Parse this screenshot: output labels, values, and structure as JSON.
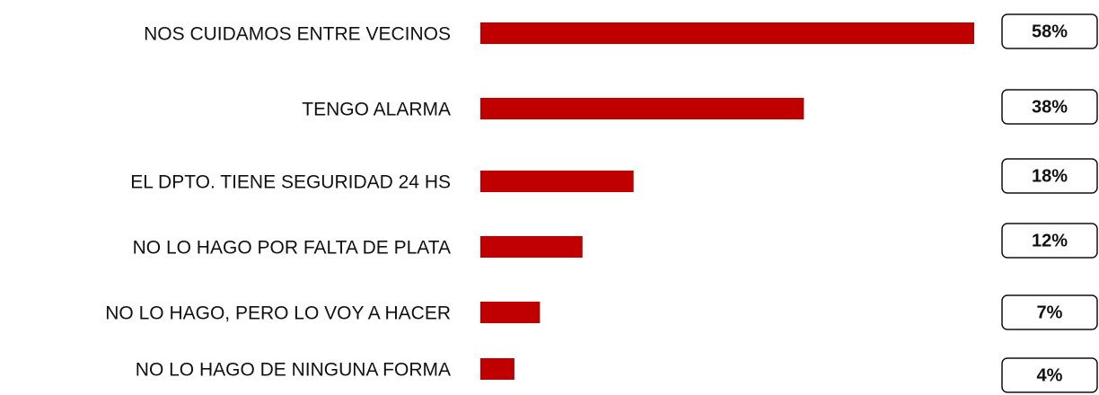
{
  "chart_data": {
    "type": "bar",
    "orientation": "horizontal",
    "categories": [
      "NOS CUIDAMOS ENTRE VECINOS",
      "TENGO ALARMA",
      "EL DPTO. TIENE SEGURIDAD 24 HS",
      "NO LO HAGO POR FALTA DE PLATA",
      "NO LO HAGO, PERO LO VOY A HACER",
      "NO LO HAGO DE NINGUNA FORMA"
    ],
    "values": [
      58,
      38,
      18,
      12,
      7,
      4
    ],
    "value_labels": [
      "58%",
      "38%",
      "18%",
      "12%",
      "7%",
      "4%"
    ],
    "color": "#c00000"
  }
}
